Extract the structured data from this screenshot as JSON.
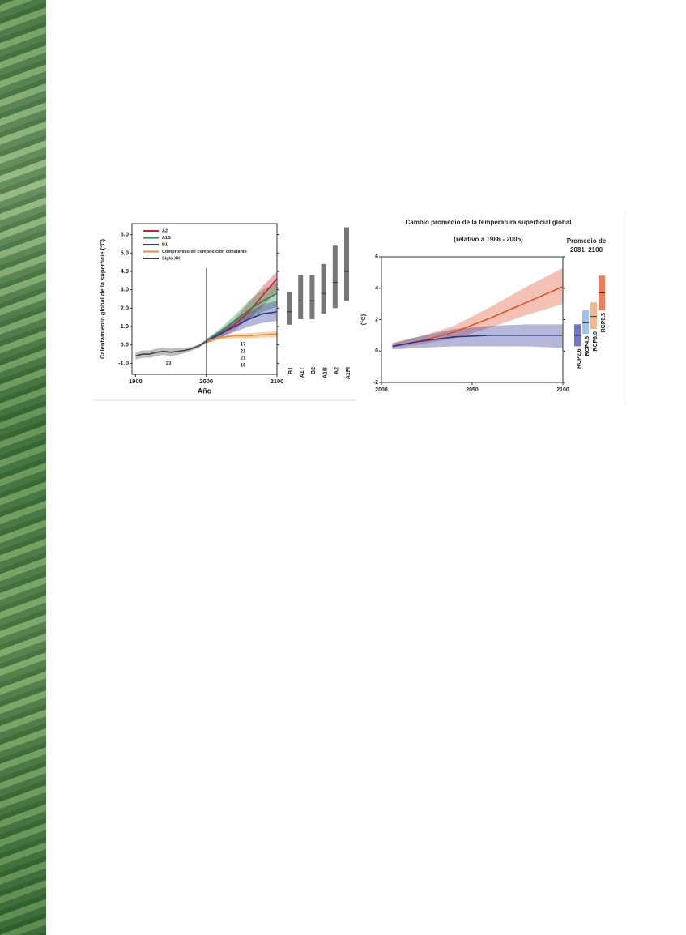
{
  "chart_data": [
    {
      "type": "line",
      "y_label": "Calentamiento global de la superficie (°C)",
      "x_label": "Año",
      "xlim": [
        1895,
        2100
      ],
      "xticks": [
        1900,
        2000,
        2100
      ],
      "ylim": [
        -1.6,
        6.6
      ],
      "yticks": [
        {
          "value": -1,
          "label": "-1.0"
        },
        {
          "value": 0,
          "label": "0.0"
        },
        {
          "value": 1,
          "label": "1.0"
        },
        {
          "value": 2,
          "label": "2.0"
        },
        {
          "value": 3,
          "label": "3.0"
        },
        {
          "value": 4,
          "label": "4.0"
        },
        {
          "value": 5,
          "label": "5.0"
        },
        {
          "value": 6,
          "label": "6.0"
        }
      ],
      "legend": "upper left",
      "series": [
        {
          "name": "A2",
          "color": "#d0202e",
          "x": [
            2000,
            2020,
            2040,
            2060,
            2080,
            2100
          ],
          "values": [
            0.2,
            0.6,
            1.1,
            1.8,
            2.7,
            3.6
          ],
          "low": [
            0.1,
            0.4,
            0.8,
            1.4,
            2.1,
            2.9
          ],
          "high": [
            0.3,
            0.8,
            1.4,
            2.3,
            3.2,
            4.0
          ]
        },
        {
          "name": "A1B",
          "color": "#1f8a4c",
          "x": [
            2000,
            2020,
            2040,
            2060,
            2080,
            2100
          ],
          "values": [
            0.2,
            0.7,
            1.3,
            1.9,
            2.4,
            2.8
          ],
          "low": [
            0.1,
            0.5,
            1.0,
            1.4,
            1.8,
            2.1
          ],
          "high": [
            0.3,
            0.9,
            1.6,
            2.4,
            3.0,
            3.4
          ]
        },
        {
          "name": "B1",
          "color": "#2a3590",
          "x": [
            2000,
            2020,
            2040,
            2060,
            2080,
            2100
          ],
          "values": [
            0.2,
            0.6,
            1.0,
            1.4,
            1.7,
            1.8
          ],
          "low": [
            0.1,
            0.4,
            0.7,
            1.0,
            1.2,
            1.3
          ],
          "high": [
            0.3,
            0.8,
            1.3,
            1.8,
            2.2,
            2.4
          ]
        },
        {
          "name": "Compromiso de composición constante",
          "color": "#f08a30",
          "x": [
            2000,
            2020,
            2040,
            2060,
            2080,
            2100
          ],
          "values": [
            0.2,
            0.4,
            0.5,
            0.5,
            0.55,
            0.6
          ],
          "low": [
            0.1,
            0.3,
            0.35,
            0.35,
            0.4,
            0.4
          ],
          "high": [
            0.3,
            0.5,
            0.6,
            0.65,
            0.7,
            0.75
          ]
        },
        {
          "name": "Siglo XX",
          "color": "#444444",
          "x": [
            1900,
            1910,
            1920,
            1930,
            1940,
            1950,
            1960,
            1970,
            1980,
            1990,
            2000
          ],
          "values": [
            -0.6,
            -0.5,
            -0.5,
            -0.4,
            -0.35,
            -0.4,
            -0.35,
            -0.3,
            -0.2,
            -0.05,
            0.2
          ],
          "low": [
            -0.8,
            -0.7,
            -0.7,
            -0.6,
            -0.55,
            -0.6,
            -0.55,
            -0.45,
            -0.3,
            -0.15,
            0.1
          ],
          "high": [
            -0.4,
            -0.3,
            -0.3,
            -0.2,
            -0.15,
            -0.2,
            -0.15,
            -0.15,
            -0.1,
            0.05,
            0.3
          ]
        }
      ],
      "annotations": [
        {
          "text": "23",
          "color": "#333333"
        },
        {
          "text": "17",
          "color": "#d0202e"
        },
        {
          "text": "21",
          "color": "#1f8a4c"
        },
        {
          "text": "21",
          "color": "#2a3590"
        },
        {
          "text": "16",
          "color": "#f08a30"
        }
      ],
      "ranges": {
        "categories": [
          "B1",
          "A1T",
          "B2",
          "A1B",
          "A2",
          "A1FI"
        ],
        "colors": [
          "#777777",
          "#777777",
          "#777777",
          "#777777",
          "#777777",
          "#777777"
        ],
        "low": [
          1.1,
          1.4,
          1.4,
          1.7,
          2.0,
          2.4
        ],
        "high": [
          2.9,
          3.8,
          3.8,
          4.4,
          5.4,
          6.4
        ],
        "best": [
          1.8,
          2.4,
          2.4,
          2.8,
          3.4,
          4.0
        ]
      }
    },
    {
      "type": "line",
      "title": "Cambio promedio de la temperatura superficial global",
      "subtitle": "(relativo a 1986 - 2005)",
      "y_label": "(°C)",
      "xlim": [
        2000,
        2100
      ],
      "xticks": [
        2000,
        2050,
        2100
      ],
      "ylim": [
        -2,
        6
      ],
      "yticks": [
        -2,
        0,
        2,
        4,
        6
      ],
      "series": [
        {
          "color": "#e0502a",
          "x": [
            2006,
            2020,
            2040,
            2060,
            2080,
            2100
          ],
          "values": [
            0.3,
            0.6,
            1.2,
            2.1,
            3.1,
            4.1
          ],
          "low": [
            0.2,
            0.4,
            0.8,
            1.5,
            2.3,
            3.0
          ],
          "high": [
            0.5,
            0.9,
            1.6,
            2.8,
            4.1,
            5.3
          ]
        },
        {
          "color": "#2a3590",
          "x": [
            2006,
            2020,
            2040,
            2060,
            2080,
            2100
          ],
          "values": [
            0.3,
            0.6,
            0.9,
            1.0,
            1.0,
            1.0
          ],
          "low": [
            0.1,
            0.2,
            0.3,
            0.3,
            0.3,
            0.2
          ],
          "high": [
            0.5,
            0.9,
            1.4,
            1.6,
            1.7,
            1.7
          ]
        }
      ],
      "ranges": {
        "title": [
          "Promedio de",
          "2081–2100"
        ],
        "categories": [
          "RCP2.6",
          "RCP4.5",
          "RCP6.0",
          "RCP8.5"
        ],
        "colors": [
          "#6f78c8",
          "#9cc4ea",
          "#f6b88a",
          "#ef7d57"
        ],
        "low": [
          0.3,
          1.1,
          1.4,
          2.6
        ],
        "high": [
          1.7,
          2.6,
          3.1,
          4.8
        ],
        "best": [
          1.0,
          1.8,
          2.2,
          3.7
        ]
      }
    }
  ]
}
